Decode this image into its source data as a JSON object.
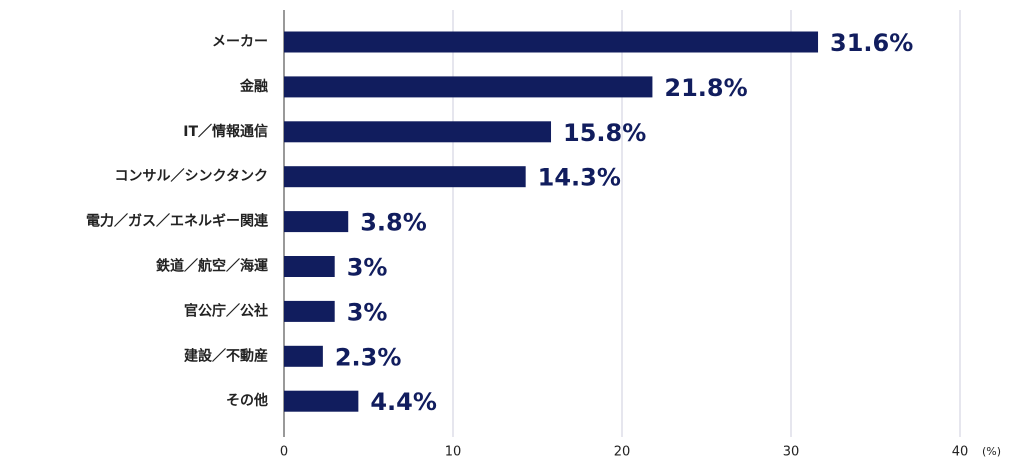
{
  "chart_data": {
    "type": "barh",
    "categories": [
      "メーカー",
      "金融",
      "IT／情報通信",
      "コンサル／シンクタンク",
      "電力／ガス／エネルギー関連",
      "鉄道／航空／海運",
      "官公庁／公社",
      "建設／不動産",
      "その他"
    ],
    "values": [
      31.6,
      21.8,
      15.8,
      14.3,
      3.8,
      3,
      3,
      2.3,
      4.4
    ],
    "value_labels": [
      "31.6%",
      "21.8%",
      "15.8%",
      "14.3%",
      "3.8%",
      "3%",
      "3%",
      "2.3%",
      "4.4%"
    ],
    "color": "#111d5e",
    "xlim": [
      0,
      40
    ],
    "xticks": [
      0,
      10,
      20,
      30,
      40
    ],
    "xlabel": "(%)",
    "grid": true
  }
}
